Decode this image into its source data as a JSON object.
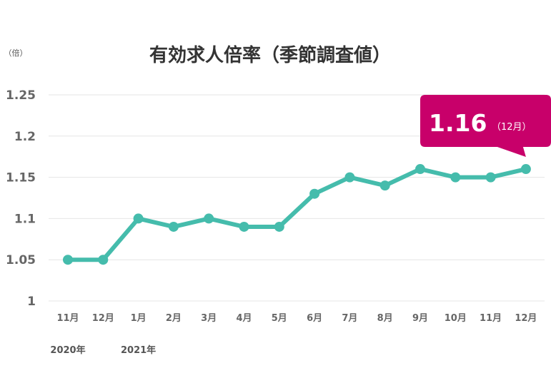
{
  "chart_data": {
    "type": "line",
    "title": "有効求人倍率（季節調査値）",
    "unit_label": "（倍）",
    "categories": [
      "11月",
      "12月",
      "1月",
      "2月",
      "3月",
      "4月",
      "5月",
      "6月",
      "7月",
      "8月",
      "9月",
      "10月",
      "11月",
      "12月"
    ],
    "year_labels": [
      {
        "text": "2020年",
        "category_index": 0
      },
      {
        "text": "2021年",
        "category_index": 2
      }
    ],
    "series": [
      {
        "values": [
          1.05,
          1.05,
          1.1,
          1.09,
          1.1,
          1.09,
          1.09,
          1.13,
          1.15,
          1.14,
          1.16,
          1.15,
          1.15,
          1.16
        ]
      }
    ],
    "ylim": [
      1,
      1.25
    ],
    "yticks": [
      "1",
      "1.05",
      "1.1",
      "1.15",
      "1.2",
      "1.25"
    ],
    "grid": true,
    "callout": {
      "value": "1.16",
      "unit": "（12月）",
      "category_index": 13
    },
    "colors": {
      "line": "#45BCAC",
      "callout": "#C8006A",
      "grid": "#E6E6E6"
    }
  }
}
